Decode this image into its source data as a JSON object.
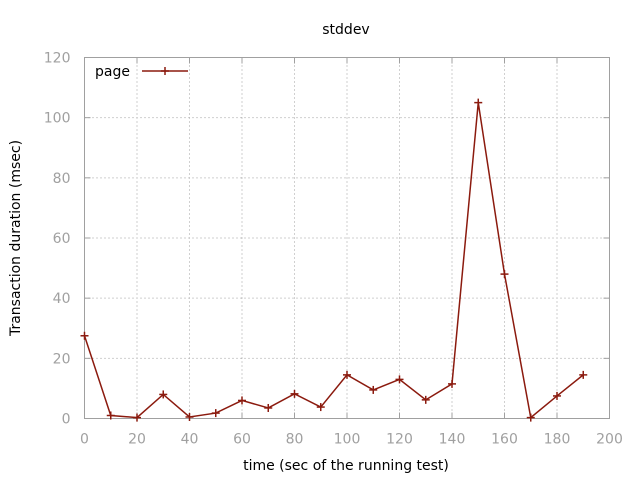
{
  "chart_data": {
    "type": "line",
    "title": "stddev",
    "xlabel": "time (sec of the running test)",
    "ylabel": "Transaction duration (msec)",
    "xlim": [
      0,
      200
    ],
    "ylim": [
      0,
      120
    ],
    "xticks": [
      0,
      20,
      40,
      60,
      80,
      100,
      120,
      140,
      160,
      180,
      200
    ],
    "yticks": [
      0,
      20,
      40,
      60,
      80,
      100,
      120
    ],
    "grid": true,
    "legend_position": "top-left",
    "series": [
      {
        "name": "page",
        "color": "#8b1a0e",
        "marker": "plus",
        "x": [
          0,
          10,
          20,
          30,
          40,
          50,
          60,
          70,
          80,
          90,
          100,
          110,
          120,
          130,
          140,
          150,
          160,
          170,
          180,
          190
        ],
        "y": [
          27.5,
          1,
          0.3,
          8,
          0.5,
          1.8,
          6,
          3.5,
          8.2,
          3.8,
          14.5,
          9.5,
          13,
          6.2,
          11.5,
          105,
          48,
          0.3,
          7.5,
          14.5
        ]
      }
    ]
  }
}
